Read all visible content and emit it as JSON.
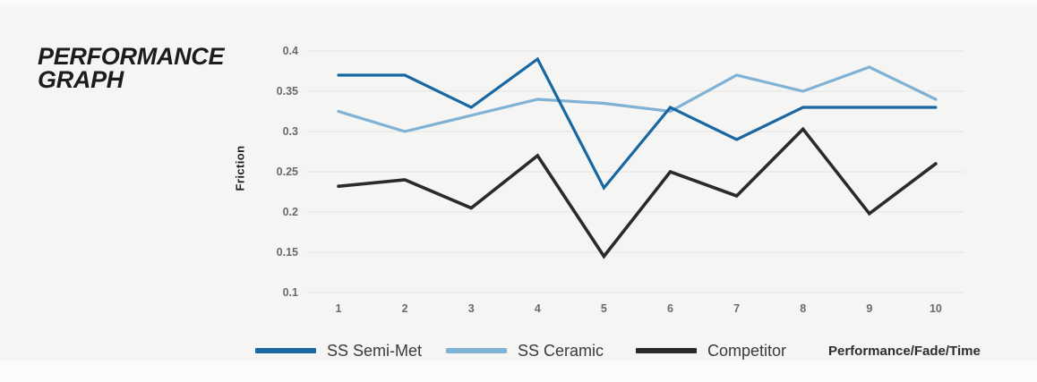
{
  "title": {
    "line1": "PERFORMANCE",
    "line2": "GRAPH"
  },
  "axis": {
    "y_label": "Friction",
    "x_note": "Performance/Fade/Time"
  },
  "legend": [
    {
      "label": "SS Semi-Met",
      "color": "#1767a3"
    },
    {
      "label": "SS Ceramic",
      "color": "#7fb2d4"
    },
    {
      "label": "Competitor",
      "color": "#2b2a29"
    }
  ],
  "colors": {
    "background": "#f5f5f4",
    "gridline": "#e6e6e4",
    "tick_text": "#6a6a6a",
    "title_text": "#1c1c1a"
  },
  "chart_data": {
    "type": "line",
    "title": "Performance Graph",
    "xlabel": "Performance/Fade/Time",
    "ylabel": "Friction",
    "x": [
      "1",
      "2",
      "3",
      "4",
      "5",
      "6",
      "7",
      "8",
      "9",
      "10"
    ],
    "yticks": [
      0.1,
      0.15,
      0.2,
      0.25,
      0.3,
      0.35,
      0.4
    ],
    "ylim": [
      0.1,
      0.4
    ],
    "grid": "horizontal",
    "legend_position": "bottom",
    "series": [
      {
        "name": "SS Semi-Met",
        "color": "#1767a3",
        "values": [
          0.37,
          0.37,
          0.33,
          0.39,
          0.23,
          0.33,
          0.29,
          0.33,
          0.33,
          0.33
        ]
      },
      {
        "name": "SS Ceramic",
        "color": "#7fb2d4",
        "values": [
          0.325,
          0.3,
          0.32,
          0.34,
          0.335,
          0.325,
          0.37,
          0.35,
          0.38,
          0.34
        ]
      },
      {
        "name": "Competitor",
        "color": "#2b2a29",
        "values": [
          0.232,
          0.24,
          0.205,
          0.27,
          0.145,
          0.25,
          0.22,
          0.303,
          0.198,
          0.26
        ]
      }
    ]
  }
}
